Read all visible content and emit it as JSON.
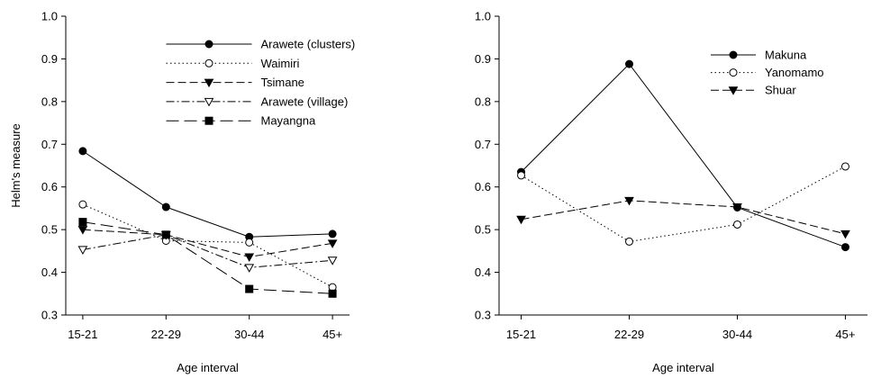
{
  "chart_data": [
    {
      "type": "line",
      "categories": [
        "15-21",
        "22-29",
        "30-44",
        "45+"
      ],
      "xlabel": "Age interval",
      "ylabel": "Helm's measure",
      "ylim": [
        0.3,
        1.0
      ],
      "yticks": [
        "0.3",
        "0.4",
        "0.5",
        "0.6",
        "0.7",
        "0.8",
        "0.9",
        "1.0"
      ],
      "grid": false,
      "legend": "top-right",
      "series": [
        {
          "name": "Arawete (clusters)",
          "values": [
            0.684,
            0.553,
            0.483,
            0.49
          ],
          "marker": "circle-filled",
          "dash": "solid"
        },
        {
          "name": "Waimiri",
          "values": [
            0.559,
            0.474,
            0.47,
            0.365
          ],
          "marker": "circle-open",
          "dash": "dotted"
        },
        {
          "name": "Tsimane",
          "values": [
            0.5,
            0.488,
            0.436,
            0.468
          ],
          "marker": "triangle-down-filled",
          "dash": "dashed"
        },
        {
          "name": "Arawete (village)",
          "values": [
            0.453,
            0.488,
            0.411,
            0.428
          ],
          "marker": "triangle-down-open",
          "dash": "dashdot"
        },
        {
          "name": "Mayangna",
          "values": [
            0.518,
            0.488,
            0.361,
            0.35
          ],
          "marker": "square-filled",
          "dash": "longdash"
        }
      ]
    },
    {
      "type": "line",
      "categories": [
        "15-21",
        "22-29",
        "30-44",
        "45+"
      ],
      "xlabel": "Age interval",
      "ylabel": "",
      "ylim": [
        0.3,
        1.0
      ],
      "yticks": [
        "0.3",
        "0.4",
        "0.5",
        "0.6",
        "0.7",
        "0.8",
        "0.9",
        "1.0"
      ],
      "grid": false,
      "legend": "top-right",
      "series": [
        {
          "name": "Makuna",
          "values": [
            0.635,
            0.888,
            0.552,
            0.459
          ],
          "marker": "circle-filled",
          "dash": "solid"
        },
        {
          "name": "Yanomamo",
          "values": [
            0.627,
            0.472,
            0.512,
            0.648
          ],
          "marker": "circle-open",
          "dash": "dotted"
        },
        {
          "name": "Shuar",
          "values": [
            0.524,
            0.568,
            0.553,
            0.49
          ],
          "marker": "triangle-down-filled",
          "dash": "dashed"
        }
      ]
    }
  ]
}
